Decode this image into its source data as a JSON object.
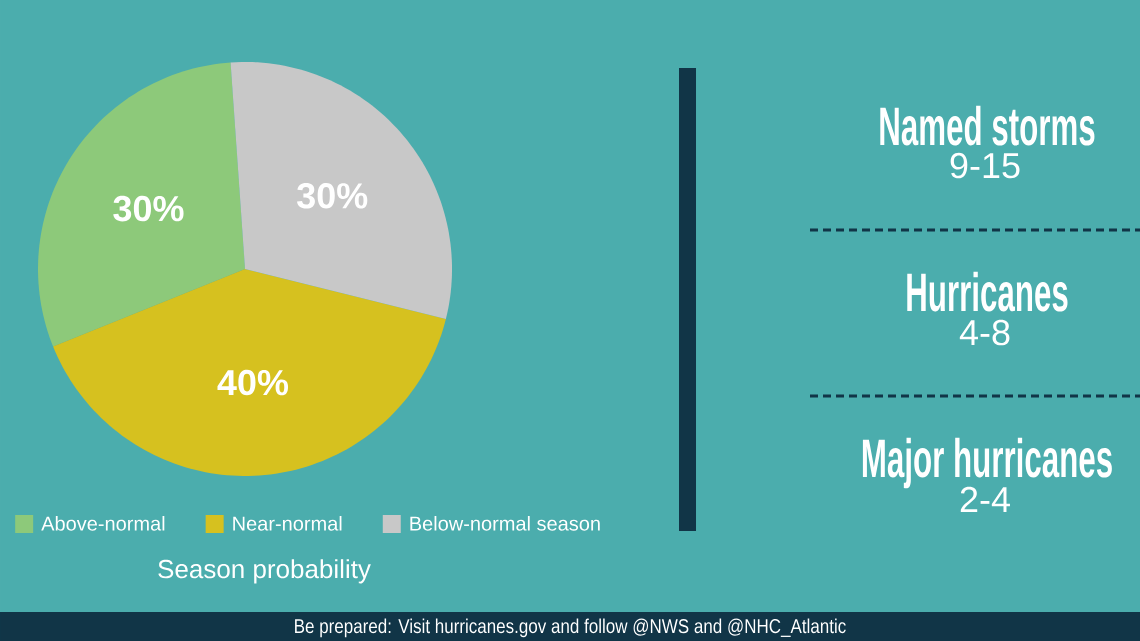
{
  "chart_data": [
    {
      "type": "pie",
      "title": "Season probability",
      "categories": [
        "Above-normal",
        "Near-normal",
        "Below-normal season"
      ],
      "values": [
        30,
        40,
        30
      ],
      "colors": [
        "#8dc97a",
        "#d6c11f",
        "#c8c8c8"
      ],
      "value_labels": [
        "30%",
        "40%",
        "30%"
      ],
      "legend": "bottom",
      "annotations": [
        "Be prepared: Visit hurricanes.gov and follow @NWS and @NHC_Atlantic"
      ]
    },
    {
      "type": "other",
      "annotations": [
        "Named storms",
        "9-15",
        "Hurricanes",
        "4-8",
        "Major hurricanes",
        "2-4"
      ]
    }
  ]
}
